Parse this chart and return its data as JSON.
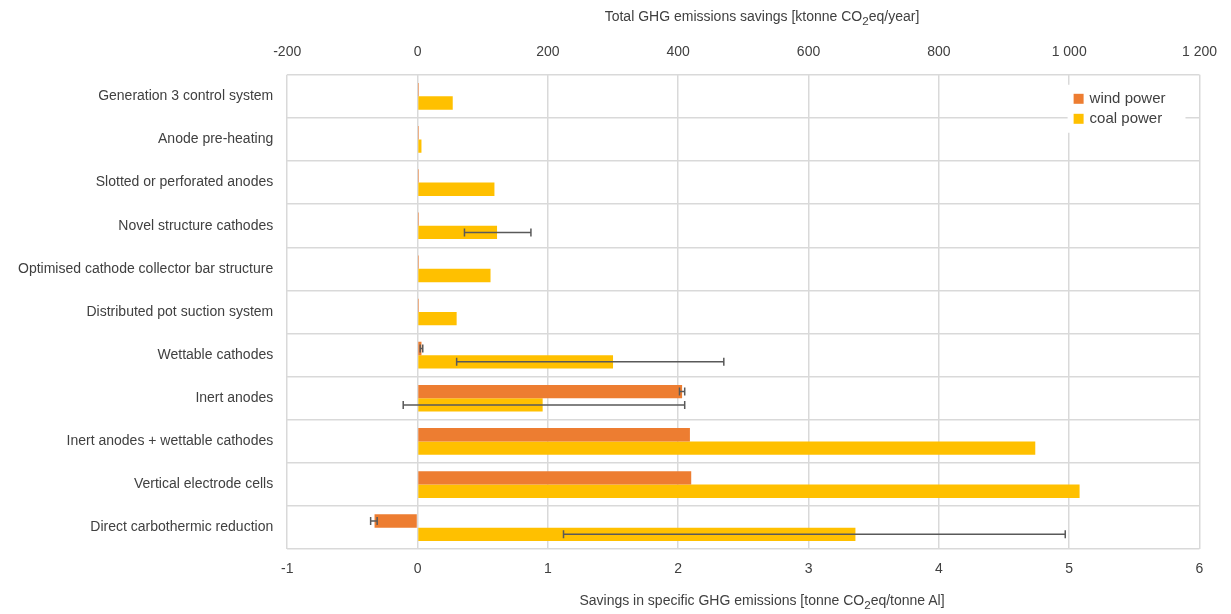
{
  "chart_data": {
    "type": "bar",
    "orientation": "horizontal",
    "x2label": "Total GHG emissions savings [ktonne CO$_{2}$eq/year]",
    "xlabel": "Savings in specific GHG emissions [tonne CO$_{2}$eq/tonne Al]",
    "categories": [
      "Generation 3 control system",
      "Anode pre-heating",
      "Slotted or perforated anodes",
      "Novel structure cathodes",
      "Optimised cathode collector bar structure",
      "Distributed pot suction system",
      "Wettable cathodes",
      "Inert anodes",
      "Inert anodes + wettable cathodes",
      "Vertical electrode cells",
      "Direct carbothermic reduction"
    ],
    "series": [
      {
        "name": "wind power",
        "color": "#ed7d31",
        "values": [
          0.01,
          0.01,
          0.01,
          0.01,
          0.01,
          0.01,
          0.03,
          2.03,
          2.09,
          2.1,
          -0.33
        ],
        "errors": [
          null,
          null,
          null,
          null,
          null,
          null,
          0.01,
          0.02,
          null,
          null,
          [
            -0.36,
            -0.31
          ]
        ]
      },
      {
        "name": "coal power",
        "color": "#ffc000",
        "values": [
          0.27,
          0.03,
          0.59,
          0.61,
          0.56,
          0.3,
          1.5,
          0.96,
          4.74,
          5.08,
          3.36
        ],
        "errors": [
          null,
          null,
          null,
          [
            0.36,
            0.87
          ],
          null,
          null,
          [
            0.3,
            2.35
          ],
          [
            -0.11,
            2.05
          ],
          null,
          null,
          [
            1.12,
            4.97
          ]
        ]
      }
    ],
    "xlim": [
      -1,
      6
    ],
    "xticks": [
      -1,
      0,
      1,
      2,
      3,
      4,
      5,
      6
    ],
    "x2lim": [
      -200,
      1200
    ],
    "x2ticks": [
      -200,
      0,
      200,
      400,
      600,
      800,
      {
        "value": 1000,
        "label": "1 000"
      },
      {
        "value": 1200,
        "label": "1 200"
      }
    ],
    "grid": true,
    "legend": "top right"
  }
}
